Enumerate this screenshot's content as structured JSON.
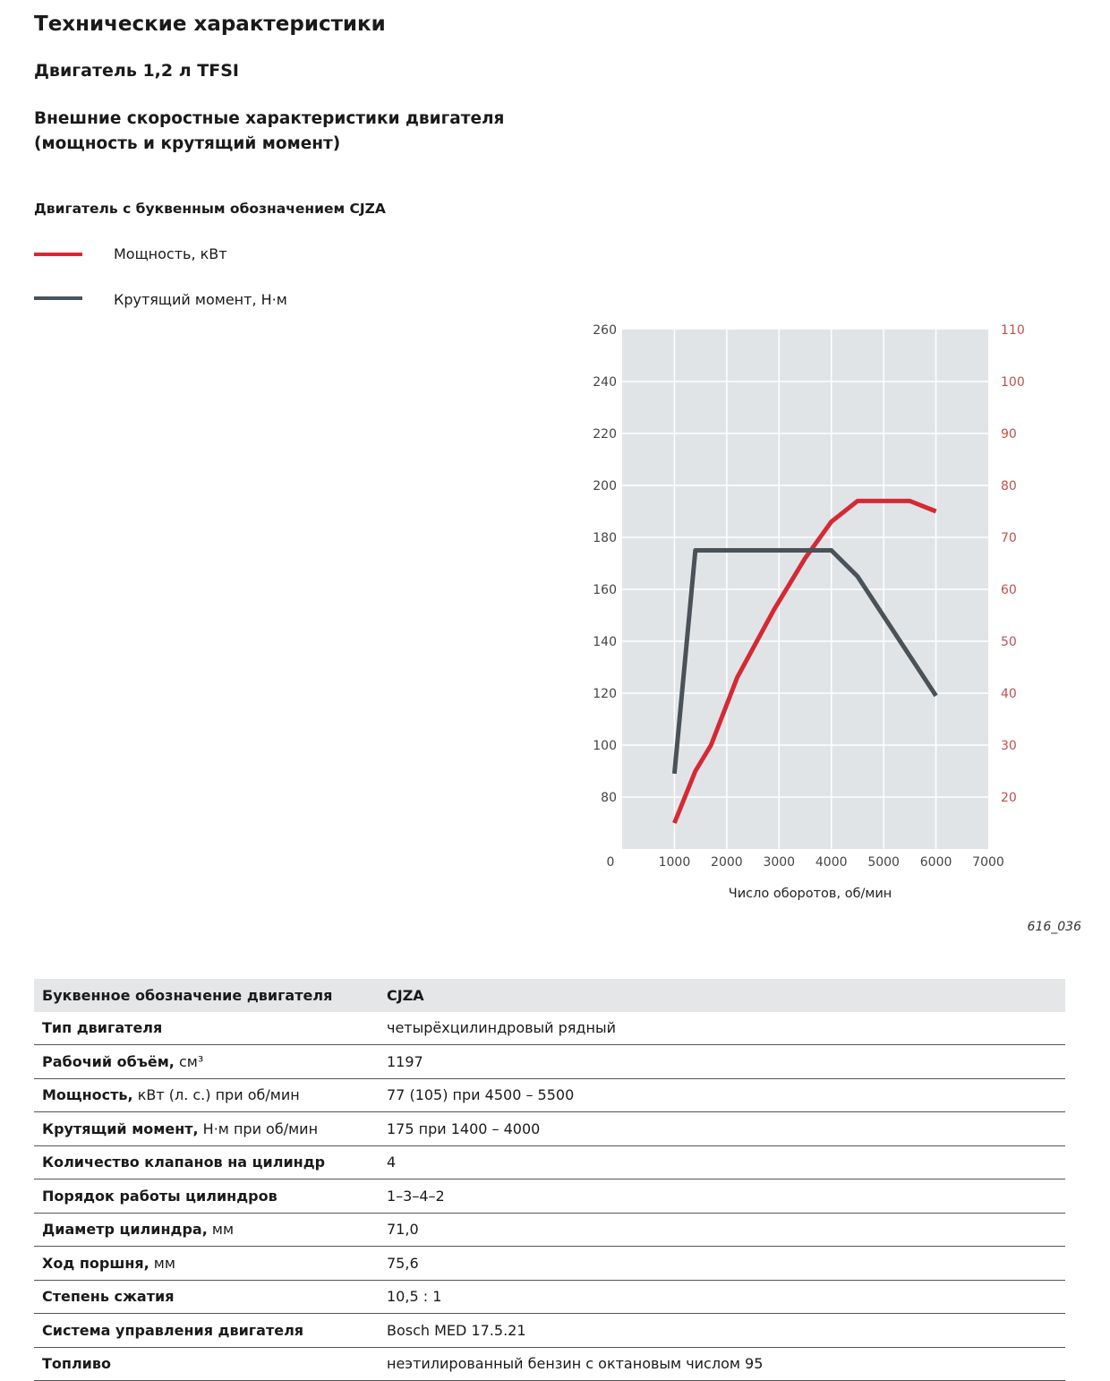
{
  "header": {
    "title": "Технические характеристики",
    "engine": "Двигатель 1,2 л TFSI",
    "subtitle_line1": "Внешние скоростные характеристики двигателя",
    "subtitle_line2": "(мощность и крутящий момент)",
    "code_label": "Двигатель с буквенным обозначением CJZA"
  },
  "legend": [
    {
      "label": "Мощность, кВт",
      "color": "#d42a35"
    },
    {
      "label": "Крутящий момент, Н·м",
      "color": "#4a5259"
    }
  ],
  "chart_data": {
    "type": "line",
    "xlabel": "Число оборотов, об/мин",
    "xlim": [
      0,
      7000
    ],
    "x_ticks": [
      "0",
      "1000",
      "2000",
      "3000",
      "4000",
      "5000",
      "6000",
      "7000"
    ],
    "y_left_lim": [
      60,
      260
    ],
    "y_left_ticks": [
      "80",
      "100",
      "120",
      "140",
      "160",
      "180",
      "200",
      "220",
      "240",
      "260"
    ],
    "y_right_lim": [
      10,
      110
    ],
    "y_right_ticks": [
      "20",
      "30",
      "40",
      "50",
      "60",
      "70",
      "80",
      "90",
      "100",
      "110"
    ],
    "grid": true,
    "background": "#e1e4e7",
    "series": [
      {
        "name": "Мощность, кВт",
        "axis": "right",
        "color": "#d42a35",
        "x": [
          1000,
          1400,
          1700,
          2200,
          2900,
          3500,
          4000,
          4500,
          5500,
          6000
        ],
        "y": [
          15,
          25,
          30,
          43,
          56,
          66,
          73,
          77,
          77,
          75
        ]
      },
      {
        "name": "Крутящий момент, Н·м",
        "axis": "left",
        "color": "#4a5259",
        "x": [
          1000,
          1400,
          4000,
          4500,
          6000
        ],
        "y": [
          89,
          175,
          175,
          165,
          119
        ]
      }
    ]
  },
  "figure_id": "616_036",
  "table": {
    "header": {
      "label": "Буквенное обозначение двигателя",
      "unit": "",
      "value": "CJZA"
    },
    "rows": [
      {
        "label": "Тип двигателя",
        "unit": "",
        "value": "четырёхцилиндровый рядный"
      },
      {
        "label": "Рабочий объём,",
        "unit": " см³",
        "value": "1197"
      },
      {
        "label": "Мощность,",
        "unit": " кВт (л. с.) при об/мин",
        "value": "77 (105) при 4500 – 5500"
      },
      {
        "label": "Крутящий момент,",
        "unit": " Н·м при об/мин",
        "value": "175 при 1400 – 4000"
      },
      {
        "label": "Количество клапанов на цилиндр",
        "unit": "",
        "value": "4"
      },
      {
        "label": "Порядок работы цилиндров",
        "unit": "",
        "value": "1–3–4–2"
      },
      {
        "label": "Диаметр цилиндра,",
        "unit": " мм",
        "value": "71,0"
      },
      {
        "label": "Ход поршня,",
        "unit": " мм",
        "value": "75,6"
      },
      {
        "label": "Степень сжатия",
        "unit": "",
        "value": "10,5 : 1"
      },
      {
        "label": "Система управления двигателя",
        "unit": "",
        "value": "Bosch MED 17.5.21"
      },
      {
        "label": "Топливо",
        "unit": "",
        "value": "неэтилированный бензин с октановым числом 95"
      }
    ]
  }
}
